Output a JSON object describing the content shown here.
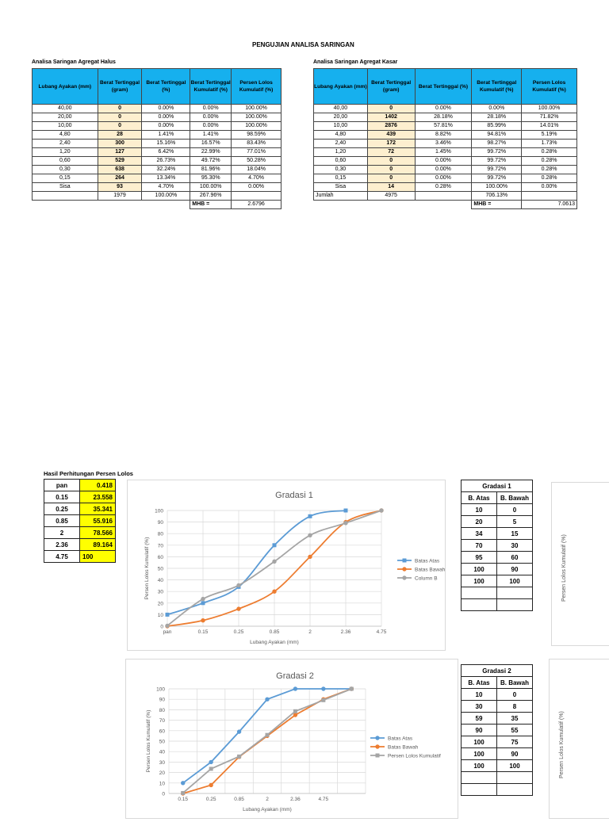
{
  "page_title": "PENGUJIAN ANALISA SARINGAN",
  "halus": {
    "label": "Analisa Saringan Agregat Halus",
    "headers": [
      "Lubang Ayakan (mm)",
      "Berat Tertinggal (gram)",
      "Berat Tertinggal (%)",
      "Berat Tertinggal Kumulatif (%)",
      "Persen Lolos Kumulatif (%)"
    ],
    "rows": [
      [
        "40,00",
        "0",
        "0.00%",
        "0.00%",
        "100.00%"
      ],
      [
        "20,00",
        "0",
        "0.00%",
        "0.00%",
        "100.00%"
      ],
      [
        "10,00",
        "0",
        "0.00%",
        "0.00%",
        "100.00%"
      ],
      [
        "4,80",
        "28",
        "1.41%",
        "1.41%",
        "98.59%"
      ],
      [
        "2,40",
        "300",
        "15.16%",
        "16.57%",
        "83.43%"
      ],
      [
        "1,20",
        "127",
        "6.42%",
        "22.99%",
        "77.01%"
      ],
      [
        "0,60",
        "529",
        "26.73%",
        "49.72%",
        "50.28%"
      ],
      [
        "0,30",
        "638",
        "32.24%",
        "81.96%",
        "18.04%"
      ],
      [
        "0,15",
        "264",
        "13.34%",
        "95.30%",
        "4.70%"
      ],
      [
        "Sisa",
        "93",
        "4.70%",
        "100.00%",
        "0.00%"
      ]
    ],
    "total": {
      "label": "",
      "berat": "1979",
      "persen": "100.00%",
      "kumulatif": "267.96%"
    },
    "mhb_label": "MHB =",
    "mhb_value": "2.6796"
  },
  "kasar": {
    "label": "Analisa Saringan Agregat Kasar",
    "headers": [
      "Lubang Ayakan (mm)",
      "Berat Tertinggal (gram)",
      "Berat Tertinggal (%)",
      "Berat Tertinggal Kumulatif (%)",
      "Persen Lolos Kumulatif (%)"
    ],
    "rows": [
      [
        "40,00",
        "0",
        "0.00%",
        "0.00%",
        "100.00%"
      ],
      [
        "20,00",
        "1402",
        "28.18%",
        "28.18%",
        "71.82%"
      ],
      [
        "10,00",
        "2876",
        "57.81%",
        "85.99%",
        "14.01%"
      ],
      [
        "4,80",
        "439",
        "8.82%",
        "94.81%",
        "5.19%"
      ],
      [
        "2,40",
        "172",
        "3.46%",
        "98.27%",
        "1.73%"
      ],
      [
        "1,20",
        "72",
        "1.45%",
        "99.72%",
        "0.28%"
      ],
      [
        "0,60",
        "0",
        "0.00%",
        "99.72%",
        "0.28%"
      ],
      [
        "0,30",
        "0",
        "0.00%",
        "99.72%",
        "0.28%"
      ],
      [
        "0,15",
        "0",
        "0.00%",
        "99.72%",
        "0.28%"
      ],
      [
        "Sisa",
        "14",
        "0.28%",
        "100.00%",
        "0.00%"
      ]
    ],
    "total": {
      "label": "Jumlah",
      "berat": "4975",
      "persen": "",
      "kumulatif": "706.13%"
    },
    "mhb_label": "MHB =",
    "mhb_value": "7.0613"
  },
  "hasil": {
    "label": "Hasil Perhitungan Persen Lolos",
    "rows": [
      [
        "pan",
        "0.418"
      ],
      [
        "0.15",
        "23.558"
      ],
      [
        "0.25",
        "35.341"
      ],
      [
        "0.85",
        "55.916"
      ],
      [
        "2",
        "78.566"
      ],
      [
        "2.36",
        "89.164"
      ],
      [
        "4.75",
        "100"
      ]
    ]
  },
  "gradasi1_table": {
    "title": "Gradasi 1",
    "headers": [
      "B. Atas",
      "B. Bawah"
    ],
    "rows": [
      [
        "10",
        "0"
      ],
      [
        "20",
        "5"
      ],
      [
        "34",
        "15"
      ],
      [
        "70",
        "30"
      ],
      [
        "95",
        "60"
      ],
      [
        "100",
        "90"
      ],
      [
        "100",
        "100"
      ],
      [
        "",
        ""
      ],
      [
        "",
        ""
      ]
    ]
  },
  "gradasi2_table": {
    "title": "Gradasi 2",
    "headers": [
      "B. Atas",
      "B. Bawah"
    ],
    "rows": [
      [
        "10",
        "0"
      ],
      [
        "30",
        "8"
      ],
      [
        "59",
        "35"
      ],
      [
        "90",
        "55"
      ],
      [
        "100",
        "75"
      ],
      [
        "100",
        "90"
      ],
      [
        "100",
        "100"
      ],
      [
        "",
        ""
      ],
      [
        "",
        ""
      ]
    ]
  },
  "partial_chart_ylabel": "Persen Lolos Kumulatif (%)",
  "colors": {
    "header_blue": "#16b0ee",
    "input_cream": "#fdefcf",
    "highlight_yellow": "#ffff00",
    "series_blue": "#5b9bd5",
    "series_orange": "#ed7d31",
    "series_gray": "#a5a5a5"
  },
  "chart_data": [
    {
      "type": "line",
      "title": "Gradasi 1",
      "xlabel": "Lubang Ayakan (mm)",
      "ylabel": "Persen Lolos Kumulatif (%)",
      "categories": [
        "pan",
        "0.15",
        "0.25",
        "0.85",
        "2",
        "2.36",
        "4.75"
      ],
      "ylim": [
        0,
        100
      ],
      "yticks": [
        0,
        10,
        20,
        30,
        40,
        50,
        60,
        70,
        80,
        90,
        100
      ],
      "grid": true,
      "smooth": true,
      "legend_position": "right",
      "series": [
        {
          "name": "Batas Atas",
          "color": "#5b9bd5",
          "marker": "square",
          "values": [
            10,
            20,
            34,
            70,
            95,
            100,
            null
          ]
        },
        {
          "name": "Batas Bawah",
          "color": "#ed7d31",
          "marker": "circle",
          "values": [
            0,
            5,
            15,
            30,
            60,
            90,
            100
          ]
        },
        {
          "name": "Column B",
          "color": "#a5a5a5",
          "marker": "circle",
          "values": [
            0.418,
            23.558,
            35.341,
            55.916,
            78.566,
            89.164,
            100
          ]
        }
      ]
    },
    {
      "type": "line",
      "title": "Gradasi 2",
      "xlabel": "Lubang Ayakan (mm)",
      "ylabel": "Persen Lolos Kumulatif (%)",
      "categories": [
        "0.15",
        "0.25",
        "0.85",
        "2",
        "2.36",
        "4.75",
        ""
      ],
      "ylim": [
        0,
        100
      ],
      "yticks": [
        0,
        10,
        20,
        30,
        40,
        50,
        60,
        70,
        80,
        90,
        100
      ],
      "grid": true,
      "smooth": false,
      "legend_position": "right",
      "series": [
        {
          "name": "Batas Atas",
          "color": "#5b9bd5",
          "marker": "circle",
          "values": [
            10,
            30,
            59,
            90,
            100,
            100,
            100
          ]
        },
        {
          "name": "Batas Bawah",
          "color": "#ed7d31",
          "marker": "circle",
          "values": [
            0,
            8,
            35,
            55,
            75,
            90,
            100
          ]
        },
        {
          "name": "Persen Lolos Kumulatif",
          "color": "#a5a5a5",
          "marker": "square",
          "values": [
            0.418,
            23.558,
            35.341,
            55.916,
            78.566,
            89.164,
            100
          ]
        }
      ]
    }
  ]
}
